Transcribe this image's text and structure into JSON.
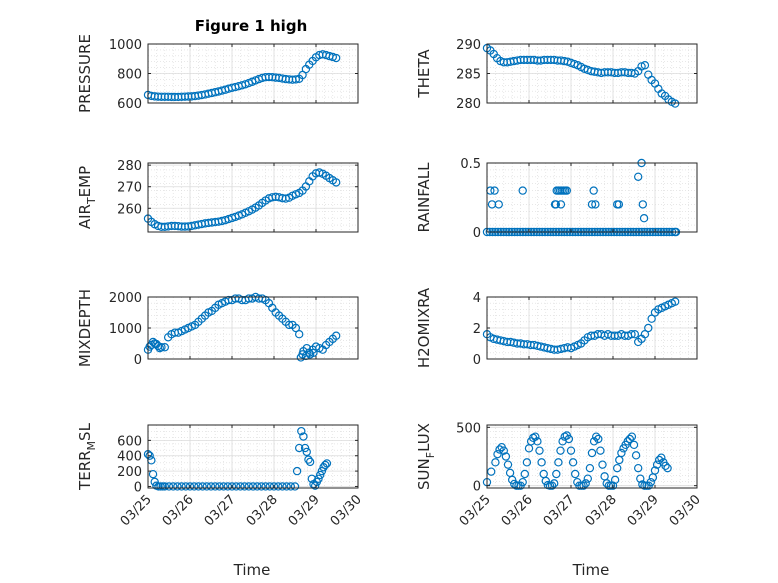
{
  "figure_title": "Figure 1 high",
  "marker_color": "#0072BD",
  "chart_data": [
    {
      "type": "scatter",
      "panel": "pressure",
      "ylabel": "PRESSURE",
      "ylim": [
        600,
        1000
      ],
      "yticks": [
        "600",
        "800",
        "1000"
      ],
      "ytick_values": [
        600,
        800,
        1000
      ],
      "xlim": [
        0,
        5
      ],
      "grid": true,
      "minor_grid": true,
      "x": [
        0.0,
        0.08,
        0.16,
        0.24,
        0.32,
        0.4,
        0.48,
        0.56,
        0.64,
        0.72,
        0.8,
        0.88,
        0.96,
        1.04,
        1.12,
        1.2,
        1.28,
        1.36,
        1.44,
        1.52,
        1.6,
        1.68,
        1.76,
        1.84,
        1.92,
        2.0,
        2.08,
        2.16,
        2.24,
        2.32,
        2.4,
        2.48,
        2.56,
        2.64,
        2.72,
        2.8,
        2.88,
        2.96,
        3.04,
        3.12,
        3.2,
        3.28,
        3.36,
        3.44,
        3.52,
        3.6,
        3.68,
        3.76,
        3.84,
        3.92,
        4.0,
        4.08,
        4.16,
        4.24,
        4.32,
        4.4,
        4.48
      ],
      "y": [
        655,
        648,
        645,
        643,
        642,
        642,
        642,
        641,
        641,
        641,
        642,
        643,
        644,
        645,
        647,
        650,
        654,
        658,
        663,
        668,
        673,
        678,
        684,
        690,
        697,
        703,
        708,
        714,
        720,
        727,
        735,
        744,
        753,
        762,
        770,
        775,
        776,
        775,
        772,
        770,
        766,
        762,
        760,
        758,
        760,
        764,
        790,
        830,
        860,
        885,
        910,
        925,
        930,
        925,
        918,
        912,
        905
      ]
    },
    {
      "type": "scatter",
      "panel": "theta",
      "ylabel": "THETA",
      "ylim": [
        280,
        290
      ],
      "yticks": [
        "280",
        "285",
        "290"
      ],
      "ytick_values": [
        280,
        285,
        290
      ],
      "xlim": [
        0,
        5
      ],
      "grid": true,
      "minor_grid": true,
      "x": [
        0.0,
        0.08,
        0.16,
        0.24,
        0.32,
        0.4,
        0.48,
        0.56,
        0.64,
        0.72,
        0.8,
        0.88,
        0.96,
        1.04,
        1.12,
        1.2,
        1.28,
        1.36,
        1.44,
        1.52,
        1.6,
        1.68,
        1.76,
        1.84,
        1.92,
        2.0,
        2.08,
        2.16,
        2.24,
        2.32,
        2.4,
        2.48,
        2.56,
        2.64,
        2.72,
        2.8,
        2.88,
        2.96,
        3.04,
        3.12,
        3.2,
        3.28,
        3.36,
        3.44,
        3.52,
        3.6,
        3.68,
        3.76,
        3.84,
        3.92,
        4.0,
        4.08,
        4.16,
        4.24,
        4.32,
        4.4,
        4.48
      ],
      "y": [
        289.3,
        288.9,
        288.3,
        287.6,
        287.1,
        286.9,
        286.9,
        287.0,
        287.1,
        287.2,
        287.3,
        287.3,
        287.3,
        287.3,
        287.3,
        287.2,
        287.2,
        287.3,
        287.3,
        287.3,
        287.3,
        287.2,
        287.2,
        287.1,
        287.0,
        286.8,
        286.6,
        286.4,
        286.1,
        285.8,
        285.6,
        285.4,
        285.3,
        285.2,
        285.1,
        285.2,
        285.2,
        285.2,
        285.1,
        285.1,
        285.2,
        285.2,
        285.1,
        285.1,
        285.0,
        285.4,
        286.2,
        286.4,
        284.8,
        283.9,
        283.3,
        282.4,
        281.6,
        281.2,
        280.6,
        280.2,
        279.9
      ]
    },
    {
      "type": "scatter",
      "panel": "air_temp",
      "ylabel": "AIR_TEMP",
      "ylabel_parts": [
        "AIR",
        "T",
        "EMP"
      ],
      "ylim": [
        249,
        281
      ],
      "yticks": [
        "260",
        "270",
        "280"
      ],
      "ytick_values": [
        260,
        270,
        280
      ],
      "xlim": [
        0,
        5
      ],
      "grid": true,
      "minor_grid": true,
      "x": [
        0.0,
        0.08,
        0.16,
        0.24,
        0.32,
        0.4,
        0.48,
        0.56,
        0.64,
        0.72,
        0.8,
        0.88,
        0.96,
        1.04,
        1.12,
        1.2,
        1.28,
        1.36,
        1.44,
        1.52,
        1.6,
        1.68,
        1.76,
        1.84,
        1.92,
        2.0,
        2.08,
        2.16,
        2.24,
        2.32,
        2.4,
        2.48,
        2.56,
        2.64,
        2.72,
        2.8,
        2.88,
        2.96,
        3.04,
        3.12,
        3.2,
        3.28,
        3.36,
        3.44,
        3.52,
        3.6,
        3.68,
        3.76,
        3.84,
        3.92,
        4.0,
        4.08,
        4.16,
        4.24,
        4.32,
        4.4,
        4.48
      ],
      "y": [
        255.2,
        253.7,
        252.6,
        251.8,
        251.4,
        251.4,
        251.6,
        251.8,
        251.8,
        251.7,
        251.5,
        251.5,
        251.6,
        251.8,
        252.1,
        252.4,
        252.7,
        253.0,
        253.2,
        253.4,
        253.6,
        253.8,
        254.1,
        254.5,
        255.0,
        255.5,
        256.0,
        256.6,
        257.2,
        257.9,
        258.6,
        259.4,
        260.3,
        261.3,
        262.5,
        263.6,
        264.6,
        265.1,
        265.3,
        265.1,
        264.7,
        264.5,
        264.9,
        265.8,
        266.5,
        267.1,
        268.2,
        270.1,
        272.5,
        274.8,
        276.2,
        276.6,
        276.0,
        275.1,
        274.0,
        273.0,
        272.0
      ]
    },
    {
      "type": "scatter",
      "panel": "rainfall",
      "ylabel": "RAINFALL",
      "ylim": [
        0,
        0.5
      ],
      "yticks": [
        "0",
        "0.5"
      ],
      "ytick_values": [
        0,
        0.5
      ],
      "xlim": [
        0,
        5
      ],
      "grid": true,
      "minor_grid": true,
      "x": [
        0.0,
        0.0658,
        0.1316,
        0.1974,
        0.2632,
        0.3289,
        0.3947,
        0.4605,
        0.5263,
        0.5921,
        0.6579,
        0.7237,
        0.7895,
        0.8553,
        0.9211,
        0.9868,
        1.0526,
        1.1184,
        1.1842,
        1.25,
        1.3158,
        1.3816,
        1.4474,
        1.5132,
        1.5789,
        1.6447,
        1.7105,
        1.7763,
        1.8421,
        1.9079,
        1.9737,
        2.0395,
        2.1053,
        2.1711,
        2.2368,
        2.3026,
        2.3684,
        2.4342,
        2.5,
        2.5658,
        2.6316,
        2.6974,
        2.7632,
        2.8289,
        2.8947,
        2.9605,
        3.0263,
        3.0921,
        3.1579,
        3.2237,
        3.2895,
        3.3553,
        3.4211,
        3.4868,
        3.5526,
        3.6184,
        3.6842,
        3.75,
        3.8158,
        3.8816,
        3.9474,
        4.0132,
        4.0789,
        4.1447,
        4.2105,
        4.2763,
        4.3421,
        4.4079,
        4.4737,
        4.5,
        0.08,
        0.12,
        0.18,
        0.28,
        0.85,
        1.62,
        1.66,
        1.7,
        1.74,
        1.78,
        1.82,
        1.86,
        1.9,
        1.64,
        1.76,
        2.5,
        2.54,
        2.58,
        3.1,
        3.14,
        3.6,
        3.68,
        3.71,
        3.74
      ],
      "y": [
        0,
        0,
        0,
        0,
        0,
        0,
        0,
        0,
        0,
        0,
        0,
        0,
        0,
        0,
        0,
        0,
        0,
        0,
        0,
        0,
        0,
        0,
        0,
        0,
        0,
        0,
        0,
        0,
        0,
        0,
        0,
        0,
        0,
        0,
        0,
        0,
        0,
        0,
        0,
        0,
        0,
        0,
        0,
        0,
        0,
        0,
        0,
        0,
        0,
        0,
        0,
        0,
        0,
        0,
        0,
        0,
        0,
        0,
        0,
        0,
        0,
        0,
        0,
        0,
        0,
        0,
        0,
        0,
        0,
        0,
        0.3,
        0.2,
        0.3,
        0.2,
        0.3,
        0.2,
        0.3,
        0.3,
        0.3,
        0.3,
        0.3,
        0.3,
        0.3,
        0.2,
        0.2,
        0.2,
        0.3,
        0.2,
        0.2,
        0.2,
        0.4,
        0.5,
        0.2,
        0.1
      ]
    },
    {
      "type": "scatter",
      "panel": "mixdepth",
      "ylabel": "MIXDEPTH",
      "ylim": [
        0,
        2000
      ],
      "yticks": [
        "0",
        "1000",
        "2000"
      ],
      "ytick_values": [
        0,
        1000,
        2000
      ],
      "xlim": [
        0,
        5
      ],
      "grid": true,
      "minor_grid": true,
      "x": [
        0.0,
        0.08,
        0.16,
        0.24,
        0.32,
        0.4,
        0.48,
        0.56,
        0.64,
        0.72,
        0.8,
        0.88,
        0.96,
        1.04,
        1.12,
        1.2,
        1.28,
        1.36,
        1.44,
        1.52,
        1.6,
        1.68,
        1.76,
        1.84,
        1.92,
        2.0,
        2.08,
        2.16,
        2.24,
        2.32,
        2.4,
        2.48,
        2.56,
        2.64,
        2.72,
        2.8,
        2.88,
        2.96,
        3.04,
        3.12,
        3.2,
        3.28,
        3.36,
        3.44,
        3.52,
        3.6,
        3.68,
        3.76,
        3.84,
        3.92,
        4.0,
        4.08,
        4.16,
        4.24,
        4.32,
        4.4,
        4.48,
        0.04,
        0.12,
        0.2,
        0.28,
        3.64,
        3.7,
        3.78,
        3.86,
        3.94
      ],
      "y": [
        300,
        450,
        500,
        420,
        380,
        380,
        700,
        800,
        850,
        850,
        900,
        950,
        1000,
        1050,
        1100,
        1200,
        1300,
        1400,
        1500,
        1550,
        1650,
        1750,
        1800,
        1850,
        1900,
        1900,
        1950,
        1950,
        1900,
        1900,
        1950,
        1950,
        2000,
        1950,
        1950,
        1900,
        1800,
        1650,
        1500,
        1400,
        1300,
        1200,
        1100,
        1100,
        1000,
        800,
        150,
        100,
        200,
        300,
        400,
        350,
        300,
        450,
        550,
        650,
        750,
        400,
        550,
        480,
        350,
        50,
        250,
        350,
        150,
        200
      ]
    },
    {
      "type": "scatter",
      "panel": "h2omixra",
      "ylabel": "H2OMIXRA",
      "ylim": [
        0,
        4
      ],
      "yticks": [
        "0",
        "2",
        "4"
      ],
      "ytick_values": [
        0,
        2,
        4
      ],
      "xlim": [
        0,
        5
      ],
      "grid": true,
      "minor_grid": true,
      "x": [
        0.0,
        0.08,
        0.16,
        0.24,
        0.32,
        0.4,
        0.48,
        0.56,
        0.64,
        0.72,
        0.8,
        0.88,
        0.96,
        1.04,
        1.12,
        1.2,
        1.28,
        1.36,
        1.44,
        1.52,
        1.6,
        1.68,
        1.76,
        1.84,
        1.92,
        2.0,
        2.08,
        2.16,
        2.24,
        2.32,
        2.4,
        2.48,
        2.56,
        2.64,
        2.72,
        2.8,
        2.88,
        2.96,
        3.04,
        3.12,
        3.2,
        3.28,
        3.36,
        3.44,
        3.52,
        3.6,
        3.68,
        3.76,
        3.84,
        3.92,
        4.0,
        4.08,
        4.16,
        4.24,
        4.32,
        4.4,
        4.48
      ],
      "y": [
        1.6,
        1.4,
        1.3,
        1.25,
        1.2,
        1.15,
        1.1,
        1.1,
        1.05,
        1.0,
        1.0,
        0.95,
        0.95,
        0.9,
        0.9,
        0.85,
        0.8,
        0.75,
        0.7,
        0.65,
        0.6,
        0.6,
        0.65,
        0.7,
        0.75,
        0.7,
        0.8,
        0.9,
        1.0,
        1.2,
        1.4,
        1.5,
        1.5,
        1.6,
        1.6,
        1.5,
        1.6,
        1.5,
        1.5,
        1.5,
        1.6,
        1.5,
        1.5,
        1.6,
        1.6,
        1.1,
        1.3,
        1.6,
        2.0,
        2.6,
        3.0,
        3.2,
        3.3,
        3.4,
        3.5,
        3.6,
        3.7
      ]
    },
    {
      "type": "scatter",
      "panel": "terr_msl",
      "ylabel": "TERR_MSL",
      "ylabel_parts": [
        "TERR",
        "M",
        "SL"
      ],
      "ylim": [
        -20,
        800
      ],
      "yticks": [
        "0",
        "200",
        "400",
        "600"
      ],
      "ytick_values": [
        0,
        200,
        400,
        600
      ],
      "xlim": [
        0,
        5
      ],
      "grid": true,
      "minor_grid": true,
      "x": [
        0.0,
        0.04,
        0.08,
        0.12,
        0.16,
        0.2,
        0.25,
        0.3,
        0.35,
        0.4,
        0.5,
        0.6,
        0.7,
        0.8,
        0.9,
        1.0,
        1.1,
        1.2,
        1.3,
        1.4,
        1.5,
        1.6,
        1.7,
        1.8,
        1.9,
        2.0,
        2.1,
        2.2,
        2.3,
        2.4,
        2.5,
        2.6,
        2.7,
        2.8,
        2.9,
        3.0,
        3.1,
        3.2,
        3.3,
        3.4,
        3.5,
        3.55,
        3.6,
        3.65,
        3.7,
        3.74,
        3.78,
        3.82,
        3.86,
        3.9,
        3.94,
        3.98,
        4.02,
        4.06,
        4.1,
        4.14,
        4.18,
        4.22,
        4.26
      ],
      "y": [
        420,
        400,
        340,
        160,
        60,
        10,
        0,
        0,
        0,
        0,
        0,
        0,
        0,
        0,
        0,
        0,
        0,
        0,
        0,
        0,
        0,
        0,
        0,
        0,
        0,
        0,
        0,
        0,
        0,
        0,
        0,
        0,
        0,
        0,
        0,
        0,
        0,
        0,
        0,
        0,
        0,
        200,
        500,
        720,
        650,
        500,
        450,
        350,
        320,
        100,
        30,
        10,
        60,
        100,
        150,
        200,
        250,
        280,
        300
      ]
    },
    {
      "type": "scatter",
      "panel": "sun_flux",
      "ylabel": "SUN_FLUX",
      "ylabel_parts": [
        "SUN",
        "F",
        "LUX"
      ],
      "ylim": [
        -20,
        520
      ],
      "yticks": [
        "0",
        "500"
      ],
      "ytick_values": [
        0,
        500
      ],
      "xlim": [
        0,
        5
      ],
      "grid": true,
      "minor_grid": true,
      "xticks": [
        "03/25",
        "03/26",
        "03/27",
        "03/28",
        "03/29",
        "03/30"
      ],
      "xlabel": "Time",
      "x": [
        0.0,
        0.1,
        0.2,
        0.25,
        0.3,
        0.35,
        0.4,
        0.45,
        0.5,
        0.55,
        0.6,
        0.65,
        0.7,
        0.75,
        0.8,
        0.85,
        0.9,
        0.95,
        1.0,
        1.05,
        1.1,
        1.15,
        1.2,
        1.25,
        1.3,
        1.35,
        1.4,
        1.45,
        1.5,
        1.55,
        1.6,
        1.65,
        1.7,
        1.75,
        1.8,
        1.85,
        1.9,
        1.95,
        2.0,
        2.05,
        2.1,
        2.15,
        2.2,
        2.25,
        2.3,
        2.35,
        2.4,
        2.45,
        2.5,
        2.55,
        2.6,
        2.65,
        2.7,
        2.75,
        2.8,
        2.85,
        2.9,
        2.95,
        3.0,
        3.05,
        3.1,
        3.15,
        3.2,
        3.25,
        3.3,
        3.35,
        3.4,
        3.45,
        3.5,
        3.55,
        3.6,
        3.65,
        3.7,
        3.75,
        3.8,
        3.85,
        3.9,
        3.95,
        4.0,
        4.05,
        4.1,
        4.15,
        4.2,
        4.25,
        4.3
      ],
      "y": [
        30,
        120,
        200,
        270,
        310,
        330,
        300,
        250,
        180,
        110,
        50,
        15,
        0,
        0,
        0,
        30,
        100,
        200,
        320,
        380,
        410,
        420,
        380,
        300,
        200,
        100,
        40,
        5,
        0,
        0,
        20,
        100,
        200,
        300,
        380,
        420,
        430,
        400,
        300,
        200,
        100,
        30,
        0,
        0,
        0,
        20,
        60,
        150,
        280,
        380,
        420,
        400,
        300,
        180,
        80,
        20,
        0,
        0,
        0,
        50,
        150,
        220,
        280,
        320,
        350,
        380,
        400,
        420,
        350,
        260,
        150,
        60,
        10,
        0,
        0,
        0,
        30,
        70,
        130,
        180,
        220,
        240,
        200,
        170,
        150
      ]
    }
  ]
}
